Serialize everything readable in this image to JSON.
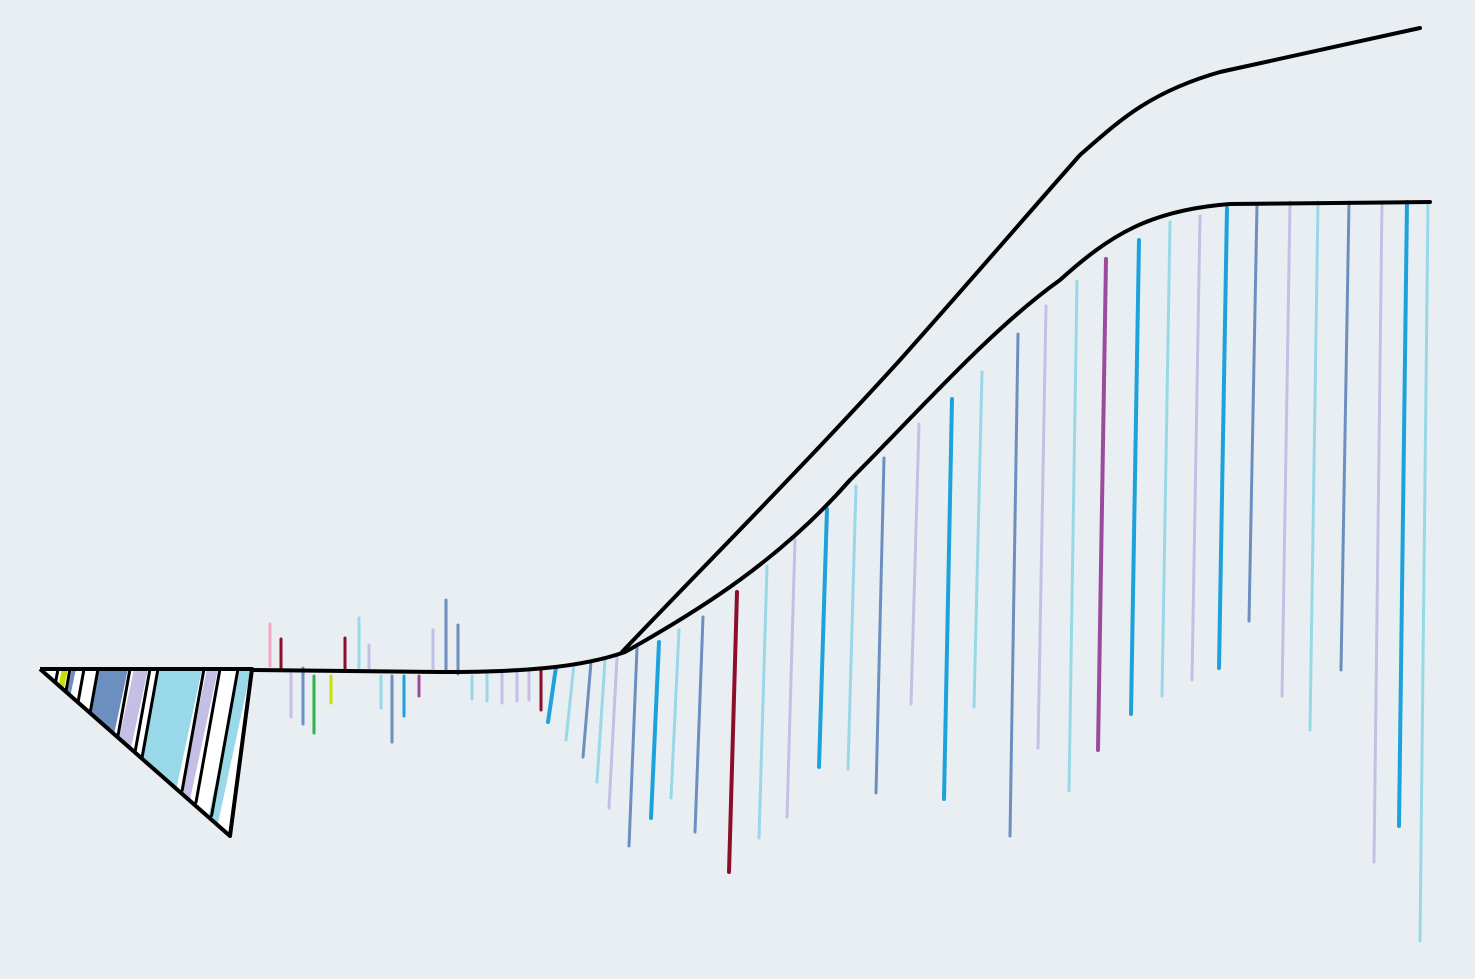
{
  "canvas": {
    "background": "#e9eef2",
    "outline_color": "#000000"
  },
  "palette": {
    "sky": "#99d8e8",
    "blue": "#1ea1dc",
    "slate": "#6d8fc0",
    "lavender": "#c4bfe4",
    "white": "#ffffff",
    "maroon": "#8c0e2b",
    "purple": "#9b4a9c",
    "green": "#2fb34a",
    "lime": "#c6e000",
    "pink": "#f4a8c4"
  },
  "diagram": {
    "kind": "line drawing without text: wedge of colored segments, baseline with colored vertical ticks, rising curve with ticks hanging from it, and an upper outline curve",
    "text_labels": []
  }
}
